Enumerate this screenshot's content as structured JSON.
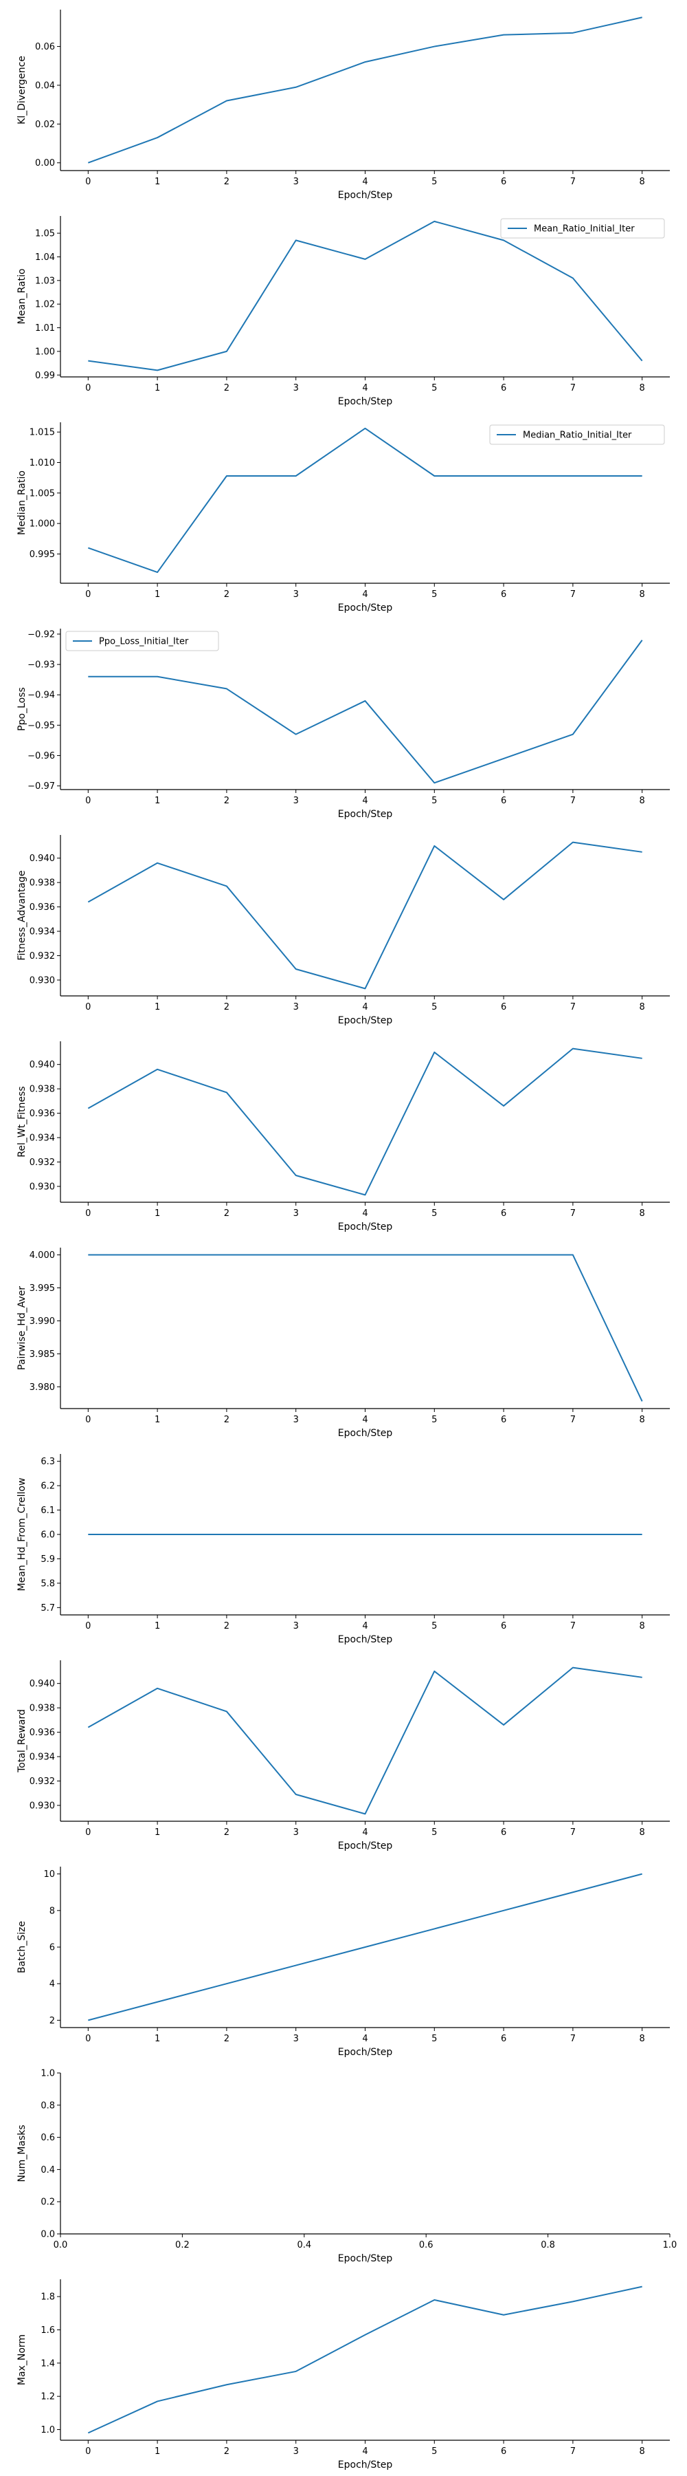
{
  "chart_data": [
    {
      "type": "line",
      "xlabel": "Epoch/Step",
      "ylabel": "Kl_Divergence",
      "x": [
        0,
        1,
        2,
        3,
        4,
        5,
        6,
        7,
        8
      ],
      "series": [
        {
          "values": [
            0.0,
            0.013,
            0.032,
            0.039,
            0.052,
            0.06,
            0.066,
            0.067,
            0.075
          ]
        }
      ],
      "xlim": [
        -0.4,
        8.4
      ],
      "ylim": [
        -0.004,
        0.079
      ],
      "xticks": [
        "0",
        "1",
        "2",
        "3",
        "4",
        "5",
        "6",
        "7",
        "8"
      ],
      "yticks": [
        0.0,
        0.02,
        0.04,
        0.06
      ],
      "ytick_labels": [
        "0.00",
        "0.02",
        "0.04",
        "0.06"
      ],
      "color": "#1f77b4",
      "grid": false
    },
    {
      "type": "line",
      "xlabel": "Epoch/Step",
      "ylabel": "Mean_Ratio",
      "x": [
        0,
        1,
        2,
        3,
        4,
        5,
        6,
        7,
        8
      ],
      "series": [
        {
          "name": "Mean_Ratio_Initial_Iter",
          "values": [
            0.996,
            0.992,
            1.0,
            1.047,
            1.039,
            1.055,
            1.047,
            1.031,
            0.996
          ]
        }
      ],
      "legend": "top-right",
      "xlim": [
        -0.4,
        8.4
      ],
      "ylim": [
        0.9892,
        1.0573
      ],
      "xticks": [
        "0",
        "1",
        "2",
        "3",
        "4",
        "5",
        "6",
        "7",
        "8"
      ],
      "yticks": [
        0.99,
        1.0,
        1.01,
        1.02,
        1.03,
        1.04,
        1.05
      ],
      "ytick_labels": [
        "0.99",
        "1.00",
        "1.01",
        "1.02",
        "1.03",
        "1.04",
        "1.05"
      ],
      "color": "#1f77b4",
      "grid": false
    },
    {
      "type": "line",
      "xlabel": "Epoch/Step",
      "ylabel": "Median_Ratio",
      "x": [
        0,
        1,
        2,
        3,
        4,
        5,
        6,
        7,
        8
      ],
      "series": [
        {
          "name": "Median_Ratio_Initial_Iter",
          "values": [
            0.996,
            0.992,
            1.0078,
            1.0078,
            1.0156,
            1.0078,
            1.0078,
            1.0078,
            1.0078
          ]
        }
      ],
      "legend": "top-right",
      "xlim": [
        -0.4,
        8.4
      ],
      "ylim": [
        0.9902,
        1.0166
      ],
      "xticks": [
        "0",
        "1",
        "2",
        "3",
        "4",
        "5",
        "6",
        "7",
        "8"
      ],
      "yticks": [
        0.995,
        1.0,
        1.005,
        1.01,
        1.015
      ],
      "ytick_labels": [
        "0.995",
        "1.000",
        "1.005",
        "1.010",
        "1.015"
      ],
      "color": "#1f77b4",
      "grid": false
    },
    {
      "type": "line",
      "xlabel": "Epoch/Step",
      "ylabel": "Ppo_Loss",
      "x": [
        0,
        1,
        2,
        3,
        4,
        5,
        6,
        7,
        8
      ],
      "series": [
        {
          "name": "Ppo_Loss_Initial_Iter",
          "values": [
            -0.934,
            -0.934,
            -0.938,
            -0.953,
            -0.942,
            -0.969,
            -0.961,
            -0.953,
            -0.922
          ]
        }
      ],
      "legend": "top-left",
      "xlim": [
        -0.4,
        8.4
      ],
      "ylim": [
        -0.9712,
        -0.9182
      ],
      "xticks": [
        "0",
        "1",
        "2",
        "3",
        "4",
        "5",
        "6",
        "7",
        "8"
      ],
      "yticks": [
        -0.97,
        -0.96,
        -0.95,
        -0.94,
        -0.93,
        -0.92
      ],
      "ytick_labels": [
        "−0.97",
        "−0.96",
        "−0.95",
        "−0.94",
        "−0.93",
        "−0.92"
      ],
      "color": "#1f77b4",
      "grid": false
    },
    {
      "type": "line",
      "xlabel": "Epoch/Step",
      "ylabel": "Fitness_Advantage",
      "x": [
        0,
        1,
        2,
        3,
        4,
        5,
        6,
        7,
        8
      ],
      "series": [
        {
          "values": [
            0.9364,
            0.9396,
            0.9377,
            0.9309,
            0.9293,
            0.941,
            0.9366,
            0.9413,
            0.9405
          ]
        }
      ],
      "xlim": [
        -0.4,
        8.4
      ],
      "ylim": [
        0.9287,
        0.9419
      ],
      "xticks": [
        "0",
        "1",
        "2",
        "3",
        "4",
        "5",
        "6",
        "7",
        "8"
      ],
      "yticks": [
        0.93,
        0.932,
        0.934,
        0.936,
        0.938,
        0.94
      ],
      "ytick_labels": [
        "0.930",
        "0.932",
        "0.934",
        "0.936",
        "0.938",
        "0.940"
      ],
      "color": "#1f77b4",
      "grid": false
    },
    {
      "type": "line",
      "xlabel": "Epoch/Step",
      "ylabel": "Rel_Wt_Fitness",
      "x": [
        0,
        1,
        2,
        3,
        4,
        5,
        6,
        7,
        8
      ],
      "series": [
        {
          "values": [
            0.9364,
            0.9396,
            0.9377,
            0.9309,
            0.9293,
            0.941,
            0.9366,
            0.9413,
            0.9405
          ]
        }
      ],
      "xlim": [
        -0.4,
        8.4
      ],
      "ylim": [
        0.9287,
        0.9419
      ],
      "xticks": [
        "0",
        "1",
        "2",
        "3",
        "4",
        "5",
        "6",
        "7",
        "8"
      ],
      "yticks": [
        0.93,
        0.932,
        0.934,
        0.936,
        0.938,
        0.94
      ],
      "ytick_labels": [
        "0.930",
        "0.932",
        "0.934",
        "0.936",
        "0.938",
        "0.940"
      ],
      "color": "#1f77b4",
      "grid": false
    },
    {
      "type": "line",
      "xlabel": "Epoch/Step",
      "ylabel": "Pairwise_Hd_Aver",
      "x": [
        0,
        1,
        2,
        3,
        4,
        5,
        6,
        7,
        8
      ],
      "series": [
        {
          "values": [
            4.0,
            4.0,
            4.0,
            4.0,
            4.0,
            4.0,
            4.0,
            4.0,
            3.9778
          ]
        }
      ],
      "xlim": [
        -0.4,
        8.4
      ],
      "ylim": [
        3.9767,
        4.0011
      ],
      "xticks": [
        "0",
        "1",
        "2",
        "3",
        "4",
        "5",
        "6",
        "7",
        "8"
      ],
      "yticks": [
        3.98,
        3.985,
        3.99,
        3.995,
        4.0
      ],
      "ytick_labels": [
        "3.980",
        "3.985",
        "3.990",
        "3.995",
        "4.000"
      ],
      "color": "#1f77b4",
      "grid": false
    },
    {
      "type": "line",
      "xlabel": "Epoch/Step",
      "ylabel": "Mean_Hd_From_Crellow",
      "x": [
        0,
        1,
        2,
        3,
        4,
        5,
        6,
        7,
        8
      ],
      "series": [
        {
          "values": [
            6.0,
            6.0,
            6.0,
            6.0,
            6.0,
            6.0,
            6.0,
            6.0,
            6.0
          ]
        }
      ],
      "xlim": [
        -0.4,
        8.4
      ],
      "ylim": [
        5.67,
        6.33
      ],
      "xticks": [
        "0",
        "1",
        "2",
        "3",
        "4",
        "5",
        "6",
        "7",
        "8"
      ],
      "yticks": [
        5.7,
        5.8,
        5.9,
        6.0,
        6.1,
        6.2,
        6.3
      ],
      "ytick_labels": [
        "5.7",
        "5.8",
        "5.9",
        "6.0",
        "6.1",
        "6.2",
        "6.3"
      ],
      "color": "#1f77b4",
      "grid": false
    },
    {
      "type": "line",
      "xlabel": "Epoch/Step",
      "ylabel": "Total_Reward",
      "x": [
        0,
        1,
        2,
        3,
        4,
        5,
        6,
        7,
        8
      ],
      "series": [
        {
          "values": [
            0.9364,
            0.9396,
            0.9377,
            0.9309,
            0.9293,
            0.941,
            0.9366,
            0.9413,
            0.9405
          ]
        }
      ],
      "xlim": [
        -0.4,
        8.4
      ],
      "ylim": [
        0.9287,
        0.9419
      ],
      "xticks": [
        "0",
        "1",
        "2",
        "3",
        "4",
        "5",
        "6",
        "7",
        "8"
      ],
      "yticks": [
        0.93,
        0.932,
        0.934,
        0.936,
        0.938,
        0.94
      ],
      "ytick_labels": [
        "0.930",
        "0.932",
        "0.934",
        "0.936",
        "0.938",
        "0.940"
      ],
      "color": "#1f77b4",
      "grid": false
    },
    {
      "type": "line",
      "xlabel": "Epoch/Step",
      "ylabel": "Batch_Size",
      "x": [
        0,
        1,
        2,
        3,
        4,
        5,
        6,
        7,
        8
      ],
      "series": [
        {
          "values": [
            2,
            3,
            4,
            5,
            6,
            7,
            8,
            9,
            10
          ]
        }
      ],
      "xlim": [
        -0.4,
        8.4
      ],
      "ylim": [
        1.6,
        10.4
      ],
      "xticks": [
        "0",
        "1",
        "2",
        "3",
        "4",
        "5",
        "6",
        "7",
        "8"
      ],
      "yticks": [
        2,
        4,
        6,
        8,
        10
      ],
      "ytick_labels": [
        "2",
        "4",
        "6",
        "8",
        "10"
      ],
      "color": "#1f77b4",
      "grid": false
    },
    {
      "type": "line",
      "xlabel": "Epoch/Step",
      "ylabel": "Num_Masks",
      "x": [],
      "series": [],
      "xlim": [
        0.0,
        1.0
      ],
      "ylim": [
        0.0,
        1.0
      ],
      "xticks": [
        "0.0",
        "0.2",
        "0.4",
        "0.6",
        "0.8",
        "1.0"
      ],
      "xtick_values": [
        0.0,
        0.2,
        0.4,
        0.6,
        0.8,
        1.0
      ],
      "yticks": [
        0.0,
        0.2,
        0.4,
        0.6,
        0.8,
        1.0
      ],
      "ytick_labels": [
        "0.0",
        "0.2",
        "0.4",
        "0.6",
        "0.8",
        "1.0"
      ],
      "color": "#1f77b4",
      "grid": false
    },
    {
      "type": "line",
      "xlabel": "Epoch/Step",
      "ylabel": "Max_Norm",
      "x": [
        0,
        1,
        2,
        3,
        4,
        5,
        6,
        7,
        8
      ],
      "series": [
        {
          "values": [
            0.98,
            1.17,
            1.27,
            1.35,
            1.57,
            1.78,
            1.69,
            1.77,
            1.86
          ]
        }
      ],
      "xlim": [
        -0.4,
        8.4
      ],
      "ylim": [
        0.936,
        1.904
      ],
      "xticks": [
        "0",
        "1",
        "2",
        "3",
        "4",
        "5",
        "6",
        "7",
        "8"
      ],
      "yticks": [
        1.0,
        1.2,
        1.4,
        1.6,
        1.8
      ],
      "ytick_labels": [
        "1.0",
        "1.2",
        "1.4",
        "1.6",
        "1.8"
      ],
      "color": "#1f77b4",
      "grid": false
    }
  ]
}
